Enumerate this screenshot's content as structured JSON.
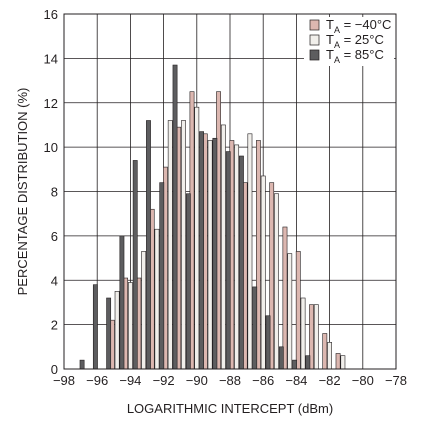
{
  "chart_data": {
    "type": "bar",
    "title": "",
    "xlabel": "LOGARITHMIC INTERCEPT (dBm)",
    "ylabel": "PERCENTAGE DISTRIBUTION (%)",
    "xlim": [
      -98,
      -78
    ],
    "ylim": [
      0,
      16
    ],
    "xticks": [
      "−98",
      "−96",
      "−94",
      "−92",
      "−90",
      "−88",
      "−86",
      "−84",
      "−82",
      "−80",
      "−78"
    ],
    "yticks": [
      "0",
      "2",
      "4",
      "6",
      "8",
      "10",
      "12",
      "14",
      "16"
    ],
    "grid": true,
    "legend_position": "top-right",
    "x": [
      -97.2,
      -96.4,
      -95.6,
      -94.8,
      -94.0,
      -93.2,
      -92.4,
      -91.6,
      -90.8,
      -90.0,
      -89.2,
      -88.4,
      -87.6,
      -86.8,
      -86.0,
      -85.2,
      -84.4,
      -83.6,
      -82.8,
      -82.0,
      -81.2,
      -80.4
    ],
    "series": [
      {
        "name": "TA = −40°C",
        "legend_main": "T",
        "legend_sub": "A",
        "legend_rest": " = −40°C",
        "color": "#dcb7b0",
        "values": [
          0,
          0,
          0,
          2.2,
          4.1,
          4.1,
          7.2,
          9.1,
          10.9,
          12.5,
          10.6,
          12.5,
          10.3,
          8.4,
          10.3,
          8.4,
          6.4,
          5.3,
          2.9,
          1.6,
          0.7,
          0
        ]
      },
      {
        "name": "TA = 25°C",
        "legend_main": "T",
        "legend_sub": "A",
        "legend_rest": " = 25°C",
        "color": "#f1efeb",
        "values": [
          0,
          0,
          0,
          3.5,
          3.9,
          5.3,
          6.3,
          11.2,
          11.2,
          11.8,
          10.3,
          11.0,
          10.1,
          10.6,
          8.7,
          7.9,
          5.2,
          3.2,
          2.9,
          1.2,
          0.6,
          0
        ]
      },
      {
        "name": "TA = 85°C",
        "legend_main": "T",
        "legend_sub": "A",
        "legend_rest": " = 85°C",
        "color": "#5d5d5f",
        "values": [
          0.4,
          3.8,
          3.2,
          6.0,
          9.4,
          11.2,
          8.4,
          13.7,
          7.9,
          10.7,
          10.4,
          9.8,
          9.6,
          3.7,
          2.4,
          1.0,
          0.4,
          0.6,
          0,
          0,
          0,
          0
        ]
      }
    ]
  }
}
